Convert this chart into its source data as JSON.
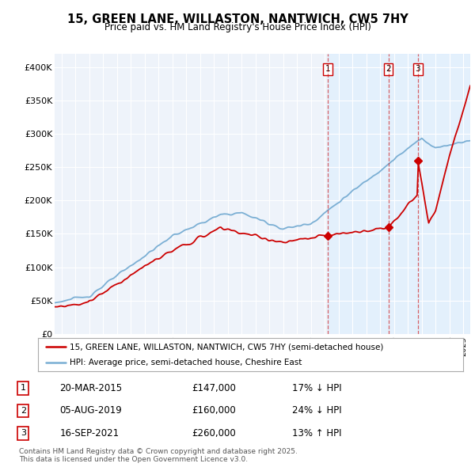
{
  "title_line1": "15, GREEN LANE, WILLASTON, NANTWICH, CW5 7HY",
  "title_line2": "Price paid vs. HM Land Registry's House Price Index (HPI)",
  "ylabel_ticks": [
    "£0",
    "£50K",
    "£100K",
    "£150K",
    "£200K",
    "£250K",
    "£300K",
    "£350K",
    "£400K"
  ],
  "ytick_values": [
    0,
    50000,
    100000,
    150000,
    200000,
    250000,
    300000,
    350000,
    400000
  ],
  "ylim": [
    0,
    420000
  ],
  "xlim_start": 1995.5,
  "xlim_end": 2025.5,
  "sale_color": "#cc0000",
  "hpi_color": "#7bafd4",
  "vline_color": "#cc0000",
  "shade_color": "#ddeeff",
  "sales": [
    {
      "date": 2015.22,
      "price": 147000,
      "label": "1"
    },
    {
      "date": 2019.59,
      "price": 160000,
      "label": "2"
    },
    {
      "date": 2021.71,
      "price": 260000,
      "label": "3"
    }
  ],
  "legend_sale_label": "15, GREEN LANE, WILLASTON, NANTWICH, CW5 7HY (semi-detached house)",
  "legend_hpi_label": "HPI: Average price, semi-detached house, Cheshire East",
  "table_rows": [
    {
      "num": "1",
      "date": "20-MAR-2015",
      "price": "£147,000",
      "change": "17% ↓ HPI"
    },
    {
      "num": "2",
      "date": "05-AUG-2019",
      "price": "£160,000",
      "change": "24% ↓ HPI"
    },
    {
      "num": "3",
      "date": "16-SEP-2021",
      "price": "£260,000",
      "change": "13% ↑ HPI"
    }
  ],
  "footnote": "Contains HM Land Registry data © Crown copyright and database right 2025.\nThis data is licensed under the Open Government Licence v3.0.",
  "bg_color": "#eef3fa"
}
